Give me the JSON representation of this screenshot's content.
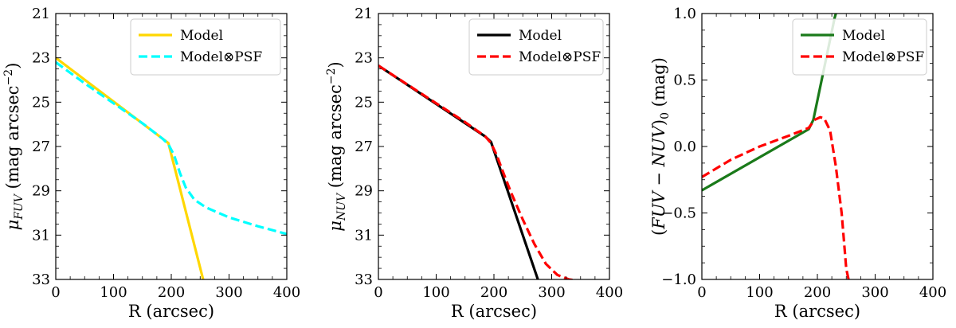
{
  "chart_data": [
    {
      "type": "line",
      "panel": "left",
      "xlabel": "R (arcsec)",
      "ylabel_symbol": "μ",
      "ylabel_sub": "FUV",
      "ylabel_unit": "(mag arcsec",
      "ylabel_exp": "−2",
      "ylabel_close": ")",
      "xlim": [
        0,
        400
      ],
      "ylim": [
        33,
        21
      ],
      "invert_y": true,
      "xticks": [
        0,
        100,
        200,
        300,
        400
      ],
      "xtick_labels": [
        "0",
        "100",
        "200",
        "300",
        "400"
      ],
      "yticks": [
        21,
        23,
        25,
        27,
        29,
        31,
        33
      ],
      "ytick_labels": [
        "21",
        "23",
        "25",
        "27",
        "29",
        "31",
        "33"
      ],
      "legend_position": "top-right",
      "series": [
        {
          "name": "Model",
          "color": "#FFD700",
          "dash": "solid",
          "x": [
            0,
            185,
            195,
            260
          ],
          "y": [
            23.0,
            26.65,
            26.85,
            33.5
          ]
        },
        {
          "name": "Model⊗PSF",
          "color": "#00FFFF",
          "dash": "dashed",
          "x": [
            0,
            50,
            100,
            150,
            185,
            195,
            205,
            215,
            225,
            240,
            260,
            300,
            350,
            400
          ],
          "y": [
            23.2,
            24.15,
            25.05,
            25.95,
            26.65,
            26.9,
            27.4,
            28.2,
            28.85,
            29.4,
            29.75,
            30.2,
            30.6,
            30.95
          ]
        }
      ]
    },
    {
      "type": "line",
      "panel": "middle",
      "xlabel": "R (arcsec)",
      "ylabel_symbol": "μ",
      "ylabel_sub": "NUV",
      "ylabel_unit": "(mag arcsec",
      "ylabel_exp": "−2",
      "ylabel_close": ")",
      "xlim": [
        0,
        400
      ],
      "ylim": [
        33,
        21
      ],
      "invert_y": true,
      "xticks": [
        0,
        100,
        200,
        300,
        400
      ],
      "xtick_labels": [
        "0",
        "100",
        "200",
        "300",
        "400"
      ],
      "yticks": [
        21,
        23,
        25,
        27,
        29,
        31,
        33
      ],
      "ytick_labels": [
        "21",
        "23",
        "25",
        "27",
        "29",
        "31",
        "33"
      ],
      "legend_position": "top-right",
      "series": [
        {
          "name": "Model",
          "color": "#000000",
          "dash": "solid",
          "x": [
            0,
            185,
            195,
            280
          ],
          "y": [
            23.35,
            26.55,
            26.8,
            33.3
          ]
        },
        {
          "name": "Model⊗PSF",
          "color": "#FF0000",
          "dash": "dashed",
          "x": [
            0,
            50,
            100,
            150,
            185,
            195,
            205,
            215,
            230,
            250,
            270,
            290,
            310,
            330,
            345
          ],
          "y": [
            23.35,
            24.2,
            25.05,
            25.9,
            26.55,
            26.85,
            27.4,
            28.1,
            29.1,
            30.3,
            31.4,
            32.3,
            32.8,
            33.0,
            33.05
          ]
        }
      ]
    },
    {
      "type": "line",
      "panel": "right",
      "xlabel": "R (arcsec)",
      "ylabel_open": "(",
      "ylabel_main": "FUV − NUV",
      "ylabel_mid": ")",
      "ylabel_sub": "0",
      "ylabel_unit": " (mag)",
      "xlim": [
        0,
        400
      ],
      "ylim": [
        -1.0,
        1.0
      ],
      "invert_y": false,
      "xticks": [
        0,
        100,
        200,
        300,
        400
      ],
      "xtick_labels": [
        "0",
        "100",
        "200",
        "300",
        "400"
      ],
      "yticks": [
        -1.0,
        -0.5,
        0.0,
        0.5,
        1.0
      ],
      "ytick_labels": [
        "−1.0",
        "−0.5",
        "0.0",
        "0.5",
        "1.0"
      ],
      "legend_position": "top-right",
      "series": [
        {
          "name": "Model",
          "color": "#1A7A1A",
          "dash": "solid",
          "x": [
            0,
            185,
            193,
            230,
            232
          ],
          "y": [
            -0.33,
            0.13,
            0.2,
            0.97,
            1.0
          ]
        },
        {
          "name": "Model⊗PSF",
          "color": "#FF0000",
          "dash": "dashed",
          "x": [
            0,
            50,
            100,
            150,
            185,
            195,
            205,
            212,
            222,
            232,
            242,
            250,
            254
          ],
          "y": [
            -0.23,
            -0.1,
            0.0,
            0.08,
            0.14,
            0.2,
            0.22,
            0.21,
            0.12,
            -0.15,
            -0.5,
            -0.92,
            -1.0
          ]
        }
      ]
    }
  ]
}
